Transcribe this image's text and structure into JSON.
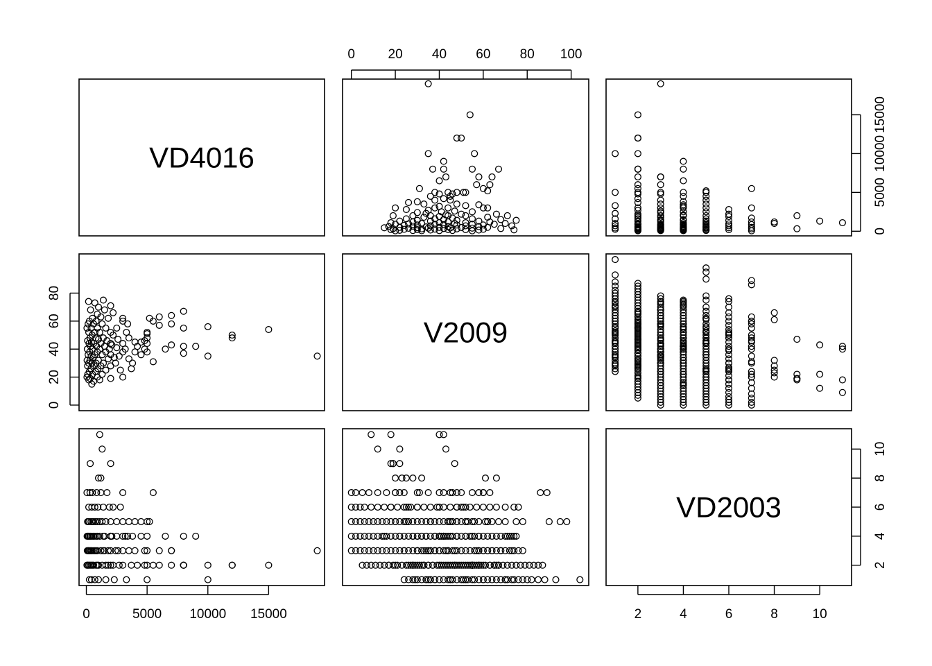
{
  "chart_data": {
    "type": "scatter",
    "plot_type": "scatterplot matrix",
    "variables": [
      "VD4016",
      "V2009",
      "VD2003"
    ],
    "axes": {
      "VD4016": {
        "range": [
          -600,
          19600
        ],
        "ticks": [
          0,
          5000,
          10000,
          15000
        ],
        "tick_labels": [
          "0",
          "5000",
          "10000",
          "15000"
        ]
      },
      "V2009": {
        "range": [
          -4,
          108
        ],
        "ticks": [
          0,
          20,
          40,
          60,
          80,
          100
        ],
        "tick_labels": [
          "0",
          "20",
          "40",
          "60",
          "80",
          "100"
        ],
        "tick_labels_vertical": [
          "0",
          "20",
          "40",
          "60",
          "80"
        ]
      },
      "VD2003": {
        "range": [
          0.6,
          11.4
        ],
        "ticks": [
          2,
          4,
          6,
          8,
          10
        ],
        "tick_labels": [
          "2",
          "4",
          "6",
          "8",
          "10"
        ]
      }
    },
    "grid": false,
    "legend": "none",
    "records": [
      [
        19000,
        35,
        3
      ],
      [
        15000,
        54,
        2
      ],
      [
        12000,
        48,
        2
      ],
      [
        12000,
        50,
        2
      ],
      [
        10000,
        35,
        1
      ],
      [
        10000,
        56,
        2
      ],
      [
        9000,
        42,
        4
      ],
      [
        8000,
        37,
        2
      ],
      [
        8000,
        42,
        4
      ],
      [
        8000,
        55,
        2
      ],
      [
        8000,
        67,
        2
      ],
      [
        7000,
        43,
        3
      ],
      [
        7000,
        58,
        2
      ],
      [
        7000,
        64,
        3
      ],
      [
        6500,
        40,
        4
      ],
      [
        6000,
        63,
        2
      ],
      [
        6000,
        57,
        3
      ],
      [
        5500,
        31,
        7
      ],
      [
        5500,
        60,
        2
      ],
      [
        5200,
        62,
        5
      ],
      [
        5000,
        38,
        3
      ],
      [
        5000,
        44,
        2
      ],
      [
        5000,
        48,
        4
      ],
      [
        5000,
        51,
        1
      ],
      [
        5000,
        52,
        5
      ],
      [
        4800,
        40,
        3
      ],
      [
        4800,
        46,
        2
      ],
      [
        4500,
        36,
        5
      ],
      [
        4500,
        45,
        4
      ],
      [
        4200,
        42,
        2
      ],
      [
        4000,
        38,
        3
      ],
      [
        4000,
        45,
        5
      ],
      [
        3800,
        30,
        4
      ],
      [
        3700,
        26,
        2
      ],
      [
        3500,
        33,
        3
      ],
      [
        3500,
        48,
        5
      ],
      [
        3400,
        58,
        4
      ],
      [
        3300,
        52,
        1
      ],
      [
        3200,
        40,
        4
      ],
      [
        3000,
        20,
        2
      ],
      [
        3000,
        38,
        4
      ],
      [
        3000,
        44,
        3
      ],
      [
        3000,
        60,
        7
      ],
      [
        3000,
        62,
        5
      ],
      [
        2800,
        25,
        6
      ],
      [
        2700,
        35,
        2
      ],
      [
        2600,
        47,
        3
      ],
      [
        2500,
        41,
        4
      ],
      [
        2500,
        55,
        5
      ],
      [
        2400,
        30,
        3
      ],
      [
        2300,
        34,
        1
      ],
      [
        2200,
        50,
        6
      ],
      [
        2200,
        66,
        2
      ],
      [
        2100,
        43,
        4
      ],
      [
        2000,
        19,
        9
      ],
      [
        2000,
        28,
        2
      ],
      [
        2000,
        36,
        3
      ],
      [
        2000,
        44,
        5
      ],
      [
        2000,
        52,
        4
      ],
      [
        2000,
        71,
        4
      ],
      [
        1900,
        40,
        6
      ],
      [
        1800,
        33,
        2
      ],
      [
        1800,
        62,
        3
      ],
      [
        1700,
        46,
        7
      ],
      [
        1600,
        25,
        5
      ],
      [
        1600,
        38,
        1
      ],
      [
        1600,
        55,
        2
      ],
      [
        1500,
        42,
        4
      ],
      [
        1500,
        68,
        3
      ],
      [
        1400,
        30,
        3
      ],
      [
        1400,
        48,
        6
      ],
      [
        1400,
        75,
        4
      ],
      [
        1300,
        22,
        10
      ],
      [
        1300,
        36,
        5
      ],
      [
        1300,
        58,
        2
      ],
      [
        1200,
        28,
        8
      ],
      [
        1200,
        44,
        3
      ],
      [
        1200,
        63,
        7
      ],
      [
        1100,
        18,
        11
      ],
      [
        1100,
        40,
        4
      ],
      [
        1100,
        52,
        5
      ],
      [
        1000,
        32,
        8
      ],
      [
        1000,
        47,
        2
      ],
      [
        1000,
        70,
        1
      ],
      [
        950,
        26,
        6
      ],
      [
        900,
        20,
        5
      ],
      [
        900,
        38,
        3
      ],
      [
        900,
        55,
        4
      ],
      [
        900,
        65,
        2
      ],
      [
        850,
        42,
        7
      ],
      [
        800,
        30,
        2
      ],
      [
        800,
        48,
        4
      ],
      [
        800,
        60,
        3
      ],
      [
        750,
        24,
        5
      ],
      [
        700,
        36,
        1
      ],
      [
        700,
        52,
        6
      ],
      [
        700,
        73,
        3
      ],
      [
        650,
        28,
        4
      ],
      [
        600,
        17,
        2
      ],
      [
        600,
        44,
        5
      ],
      [
        600,
        58,
        3
      ],
      [
        550,
        34,
        4
      ],
      [
        500,
        22,
        7
      ],
      [
        500,
        40,
        2
      ],
      [
        500,
        62,
        5
      ],
      [
        480,
        50,
        3
      ],
      [
        450,
        15,
        4
      ],
      [
        450,
        30,
        6
      ],
      [
        420,
        45,
        1
      ],
      [
        400,
        35,
        3
      ],
      [
        400,
        55,
        2
      ],
      [
        380,
        26,
        5
      ],
      [
        350,
        42,
        4
      ],
      [
        350,
        68,
        3
      ],
      [
        320,
        19,
        9
      ],
      [
        300,
        32,
        2
      ],
      [
        300,
        48,
        7
      ],
      [
        280,
        38,
        4
      ],
      [
        250,
        24,
        3
      ],
      [
        250,
        60,
        1
      ],
      [
        220,
        44,
        5
      ],
      [
        200,
        18,
        6
      ],
      [
        200,
        30,
        3
      ],
      [
        200,
        52,
        2
      ],
      [
        180,
        74,
        4
      ],
      [
        150,
        36,
        5
      ],
      [
        150,
        58,
        3
      ],
      [
        120,
        22,
        4
      ],
      [
        100,
        28,
        2
      ],
      [
        100,
        46,
        5
      ],
      [
        80,
        40,
        3
      ],
      [
        60,
        32,
        4
      ],
      [
        50,
        20,
        7
      ],
      [
        50,
        55,
        2
      ]
    ],
    "age_by_count": {
      "1": [
        24,
        26,
        28,
        29,
        30,
        32,
        34,
        36,
        38,
        40,
        42,
        44,
        45,
        46,
        48,
        50,
        52,
        53,
        55,
        56,
        58,
        60,
        62,
        64,
        66,
        68,
        70,
        71,
        73,
        74,
        76,
        78,
        80,
        82,
        85,
        88,
        93,
        104
      ],
      "2": [
        5,
        7,
        9,
        11,
        13,
        15,
        17,
        19,
        21,
        23,
        25,
        27,
        29,
        31,
        33,
        35,
        37,
        39,
        41,
        43,
        45,
        47,
        49,
        51,
        53,
        55,
        57,
        59,
        61,
        63,
        65,
        67,
        69,
        71,
        73,
        75,
        77,
        79,
        81,
        83,
        85,
        87
      ],
      "3": [
        0,
        2,
        4,
        6,
        8,
        10,
        12,
        14,
        16,
        18,
        20,
        22,
        24,
        26,
        28,
        30,
        32,
        34,
        36,
        38,
        40,
        42,
        44,
        46,
        48,
        50,
        52,
        54,
        56,
        58,
        60,
        62,
        64,
        66,
        68,
        70,
        72,
        74,
        76,
        78
      ],
      "4": [
        0,
        2,
        4,
        6,
        8,
        10,
        12,
        14,
        16,
        18,
        20,
        22,
        24,
        26,
        28,
        30,
        32,
        34,
        36,
        38,
        40,
        42,
        44,
        46,
        48,
        50,
        52,
        54,
        56,
        58,
        60,
        62,
        64,
        66,
        68,
        70,
        72,
        73
      ],
      "5": [
        0,
        2,
        4,
        6,
        8,
        10,
        12,
        14,
        16,
        18,
        20,
        22,
        24,
        26,
        28,
        30,
        32,
        34,
        36,
        38,
        40,
        42,
        44,
        46,
        48,
        50,
        53,
        56,
        58,
        61,
        64,
        67,
        70,
        75,
        78,
        90,
        95,
        98
      ],
      "6": [
        0,
        2,
        4,
        6,
        9,
        12,
        15,
        18,
        21,
        24,
        27,
        30,
        33,
        36,
        39,
        42,
        45,
        48,
        51,
        54,
        57,
        60,
        63,
        66,
        70,
        74,
        76
      ],
      "7": [
        0,
        2,
        5,
        8,
        12,
        16,
        20,
        24,
        30,
        35,
        40,
        45,
        50,
        55,
        58,
        60,
        86,
        89
      ],
      "8": [
        20,
        23,
        25,
        61,
        66
      ],
      "9": [
        18,
        22,
        47
      ],
      "10": [
        12,
        43
      ],
      "11": [
        9,
        40,
        42
      ]
    }
  }
}
